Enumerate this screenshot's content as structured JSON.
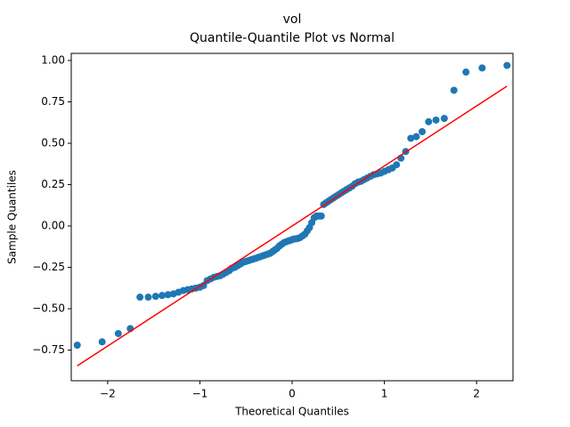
{
  "chart_data": {
    "type": "scatter",
    "title": "vol",
    "subtitle": "Quantile-Quantile Plot vs Normal",
    "xlabel": "Theoretical Quantiles",
    "ylabel": "Sample Quantiles",
    "xlim": [
      -2.395,
      2.395
    ],
    "ylim": [
      -0.935,
      1.043
    ],
    "xticks": [
      {
        "value": -2,
        "label": "−2"
      },
      {
        "value": -1,
        "label": "−1"
      },
      0,
      1,
      2
    ],
    "yticks": [
      {
        "value": -0.75,
        "label": "−0.75"
      },
      {
        "value": -0.5,
        "label": "−0.50"
      },
      {
        "value": -0.25,
        "label": "−0.25"
      },
      {
        "value": 0,
        "label": "0.00"
      },
      {
        "value": 0.25,
        "label": "0.25"
      },
      {
        "value": 0.5,
        "label": "0.50"
      },
      {
        "value": 0.75,
        "label": "0.75"
      },
      {
        "value": 1,
        "label": "1.00"
      }
    ],
    "grid": false,
    "series": [
      {
        "mode": "markers",
        "color": "#1f77b4",
        "x": [
          -2.33,
          -2.06,
          -1.885,
          -1.755,
          -1.65,
          -1.56,
          -1.48,
          -1.41,
          -1.346,
          -1.287,
          -1.232,
          -1.18,
          -1.132,
          -1.086,
          -1.043,
          -1.001,
          -0.961,
          -0.922,
          -0.885,
          -0.849,
          -0.814,
          -0.779,
          -0.746,
          -0.714,
          -0.682,
          -0.651,
          -0.621,
          -0.591,
          -0.562,
          -0.533,
          -0.505,
          -0.477,
          -0.449,
          -0.422,
          -0.395,
          -0.368,
          -0.342,
          -0.316,
          -0.29,
          -0.264,
          -0.239,
          -0.213,
          -0.188,
          -0.163,
          -0.137,
          -0.112,
          -0.087,
          -0.062,
          -0.037,
          -0.012,
          0.012,
          0.037,
          0.062,
          0.087,
          0.112,
          0.137,
          0.163,
          0.188,
          0.213,
          0.239,
          0.264,
          0.29,
          0.316,
          0.342,
          0.368,
          0.395,
          0.422,
          0.449,
          0.477,
          0.505,
          0.533,
          0.562,
          0.591,
          0.621,
          0.651,
          0.682,
          0.714,
          0.746,
          0.779,
          0.814,
          0.849,
          0.885,
          0.922,
          0.961,
          1.001,
          1.043,
          1.086,
          1.132,
          1.18,
          1.232,
          1.287,
          1.346,
          1.41,
          1.48,
          1.56,
          1.65,
          1.755,
          1.885,
          2.06,
          2.33
        ],
        "values": [
          -0.72,
          -0.7,
          -0.65,
          -0.62,
          -0.43,
          -0.43,
          -0.425,
          -0.42,
          -0.415,
          -0.41,
          -0.4,
          -0.39,
          -0.385,
          -0.38,
          -0.375,
          -0.37,
          -0.36,
          -0.33,
          -0.32,
          -0.31,
          -0.305,
          -0.3,
          -0.29,
          -0.28,
          -0.27,
          -0.255,
          -0.25,
          -0.24,
          -0.23,
          -0.22,
          -0.215,
          -0.21,
          -0.205,
          -0.2,
          -0.195,
          -0.19,
          -0.185,
          -0.18,
          -0.175,
          -0.17,
          -0.165,
          -0.155,
          -0.145,
          -0.135,
          -0.12,
          -0.11,
          -0.1,
          -0.095,
          -0.09,
          -0.085,
          -0.08,
          -0.078,
          -0.075,
          -0.07,
          -0.06,
          -0.05,
          -0.03,
          -0.01,
          0.02,
          0.05,
          0.06,
          0.06,
          0.06,
          0.13,
          0.14,
          0.15,
          0.16,
          0.17,
          0.18,
          0.19,
          0.2,
          0.21,
          0.22,
          0.23,
          0.24,
          0.255,
          0.265,
          0.27,
          0.28,
          0.29,
          0.3,
          0.31,
          0.315,
          0.32,
          0.33,
          0.34,
          0.35,
          0.37,
          0.41,
          0.45,
          0.53,
          0.54,
          0.57,
          0.63,
          0.64,
          0.65,
          0.82,
          0.93,
          0.955,
          0.97
        ]
      },
      {
        "mode": "line",
        "color": "#ff0000",
        "x": [
          -2.33,
          2.33
        ],
        "values": [
          -0.845,
          0.845
        ]
      }
    ]
  }
}
